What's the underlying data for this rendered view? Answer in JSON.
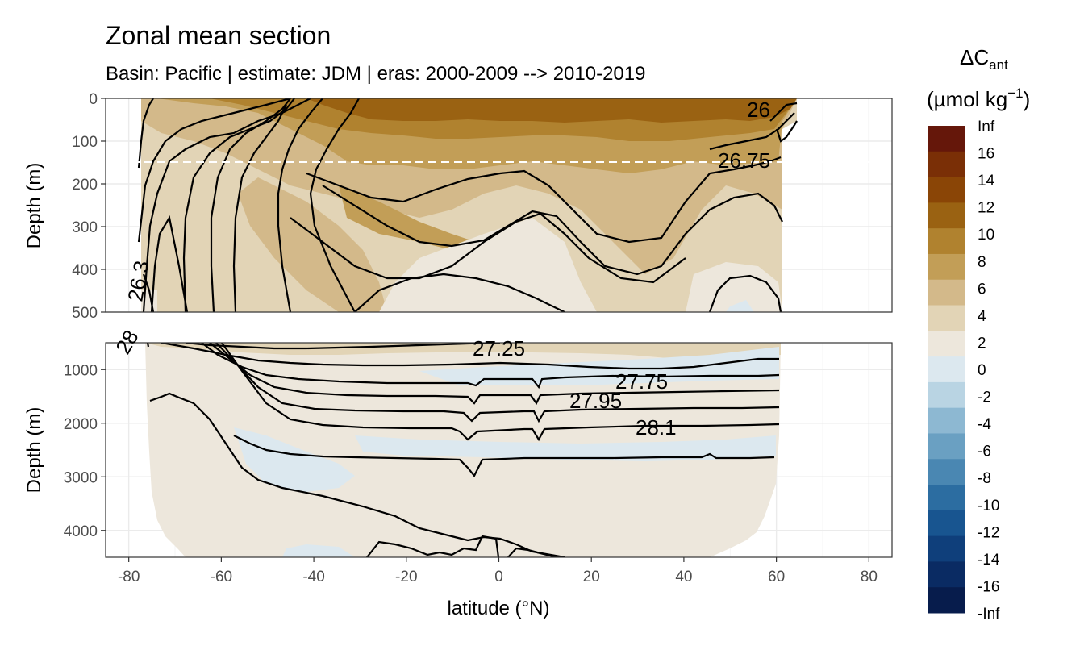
{
  "chart_data": {
    "type": "heatmap",
    "title": "Zonal mean section",
    "subtitle": "Basin: Pacific | estimate: JDM  | eras: 2000-2009 --> 2010-2019",
    "xlabel": "latitude (°N)",
    "ylabel": "Depth (m)",
    "xlim": [
      -85,
      85
    ],
    "x_ticks": [
      "-80",
      "-60",
      "-40",
      "-20",
      "0",
      "20",
      "40",
      "60",
      "80"
    ],
    "panels": [
      {
        "name": "upper",
        "ylim": [
          0,
          500
        ],
        "y_ticks": [
          "0",
          "100",
          "200",
          "300",
          "400",
          "500"
        ],
        "dashed_reference_depth": 150
      },
      {
        "name": "lower",
        "ylim": [
          500,
          4500
        ],
        "y_ticks": [
          "1000",
          "2000",
          "3000",
          "4000"
        ]
      }
    ],
    "legend": {
      "title_main": "ΔC",
      "title_sub": "ant",
      "unit_main": "(µmol kg",
      "unit_sup": "−1",
      "unit_end": ")",
      "placement": "right",
      "labels": [
        "Inf",
        "16",
        "14",
        "12",
        "10",
        "8",
        "6",
        "4",
        "2",
        "0",
        "-2",
        "-4",
        "-6",
        "-8",
        "-10",
        "-12",
        "-14",
        "-16",
        "-Inf"
      ],
      "colors": [
        "#65170a",
        "#7a2f06",
        "#8a4506",
        "#9a6212",
        "#b0822f",
        "#c29e57",
        "#d3b98a",
        "#e2d4b6",
        "#ede7dc",
        "#dce8ef",
        "#b9d4e3",
        "#8db8d2",
        "#6aa0c2",
        "#4a87b2",
        "#2c6da1",
        "#185590",
        "#0f3f7b",
        "#0a2b63",
        "#071c4c"
      ]
    },
    "contour_labels": [
      {
        "panel": "upper",
        "text": "26"
      },
      {
        "panel": "upper",
        "text": "26.75"
      },
      {
        "panel": "upper",
        "text": "26.3"
      },
      {
        "panel": "lower",
        "text": "27.25"
      },
      {
        "panel": "lower",
        "text": "27.75"
      },
      {
        "panel": "lower",
        "text": "27.95"
      },
      {
        "panel": "lower",
        "text": "28.1"
      },
      {
        "panel": "lower",
        "text": "28"
      }
    ],
    "grid": true
  }
}
